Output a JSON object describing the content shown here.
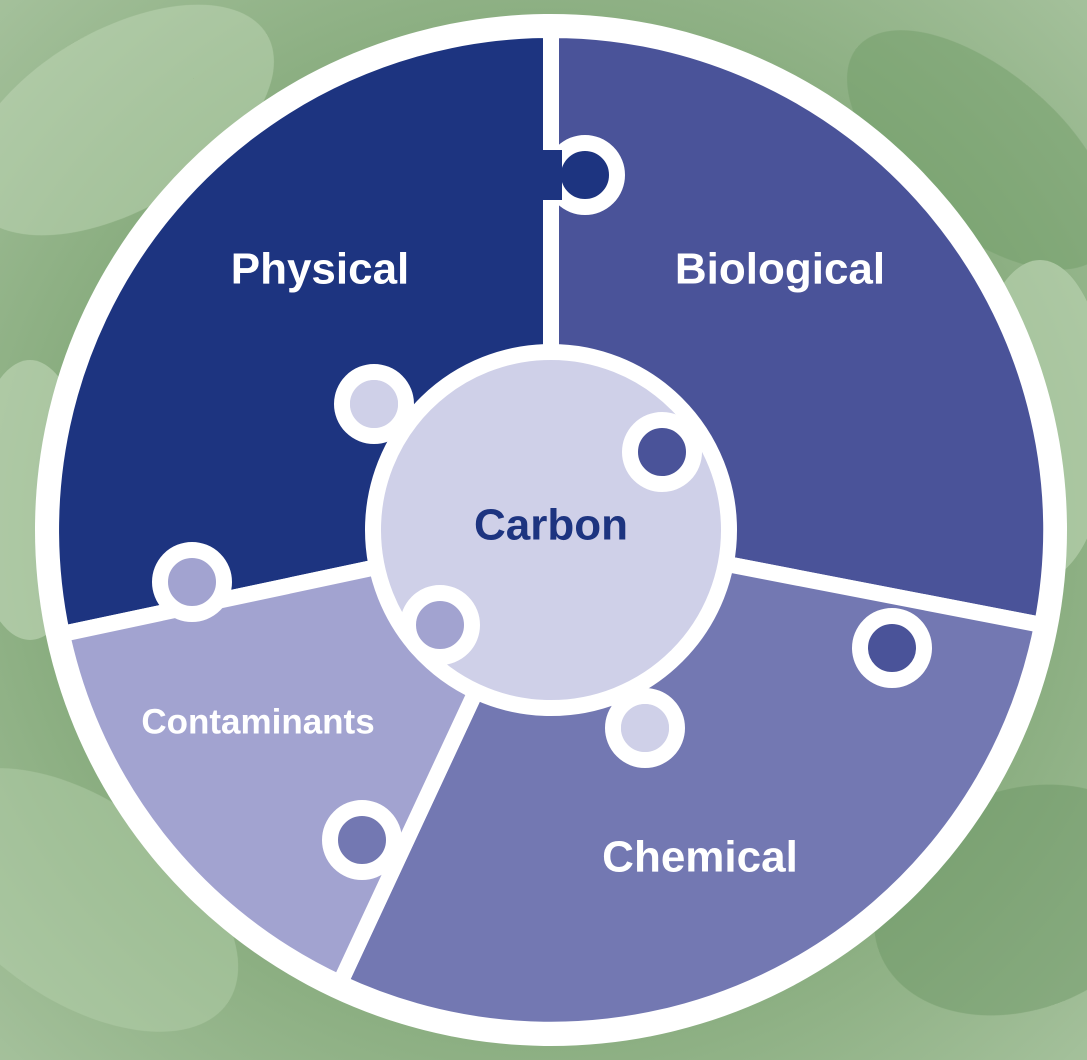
{
  "nodes": [
    {
      "label": "Physical"
    },
    {
      "label": "Biological"
    },
    {
      "label": "Carbon"
    },
    {
      "label": "Contaminants"
    },
    {
      "label": "Chemical"
    }
  ]
}
